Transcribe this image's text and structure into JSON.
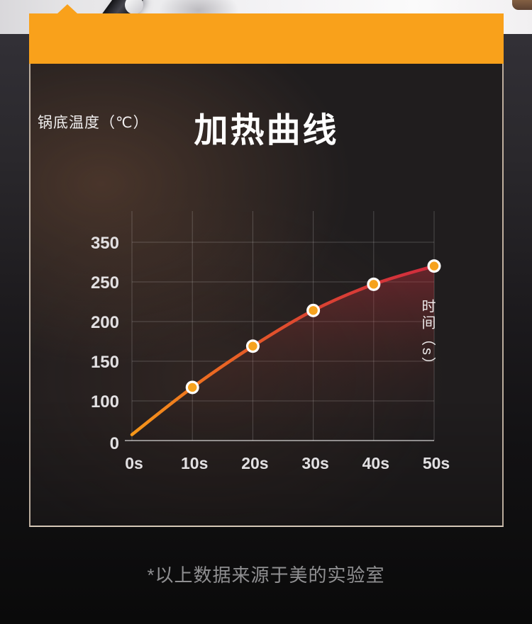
{
  "banner": {
    "color": "#F9A11B"
  },
  "panel": {
    "background": "#201D1E",
    "border_color": "#E3D2C0",
    "glow_color": "#82563C"
  },
  "chart_data": {
    "type": "line",
    "title": "加热曲线",
    "ylabel": "锅底温度（℃）",
    "xlabel": "时间（s）",
    "x_tick_labels": [
      "0s",
      "10s",
      "20s",
      "30s",
      "40s",
      "50s"
    ],
    "y_tick_labels": [
      "350",
      "250",
      "200",
      "150",
      "100",
      "0"
    ],
    "y_tick_values": [
      350,
      250,
      200,
      150,
      100,
      0
    ],
    "x": [
      0,
      10,
      20,
      30,
      40,
      50
    ],
    "values": [
      15,
      117,
      169,
      214,
      247,
      290
    ],
    "marker_point_indices": [
      1,
      2,
      3,
      4,
      5
    ],
    "grid": true,
    "legend": "none",
    "axis_note": "y axis tick spacing is uniform although values are non-linear (0,100,150,200,250,350)",
    "line_gradient": [
      "#F69819",
      "#EC6A22",
      "#DD4830",
      "#D02B3E"
    ],
    "line_gradient_offsets": [
      0,
      0.28,
      0.58,
      1
    ],
    "area_gradient": [
      "rgba(208,48,62,0.42)",
      "rgba(150,55,50,0.16)",
      "rgba(60,30,30,0)"
    ],
    "area_gradient_offsets": [
      0,
      0.5,
      1
    ],
    "marker_fill": "#F6A21E",
    "marker_ring": "#FFFFFF",
    "grid_color": "rgba(255,255,255,0.20)",
    "axis_color": "rgba(255,255,255,0.50)",
    "tick_text_color": "#E2E0E2"
  },
  "caption": {
    "text": "*以上数据来源于美的实验室"
  }
}
